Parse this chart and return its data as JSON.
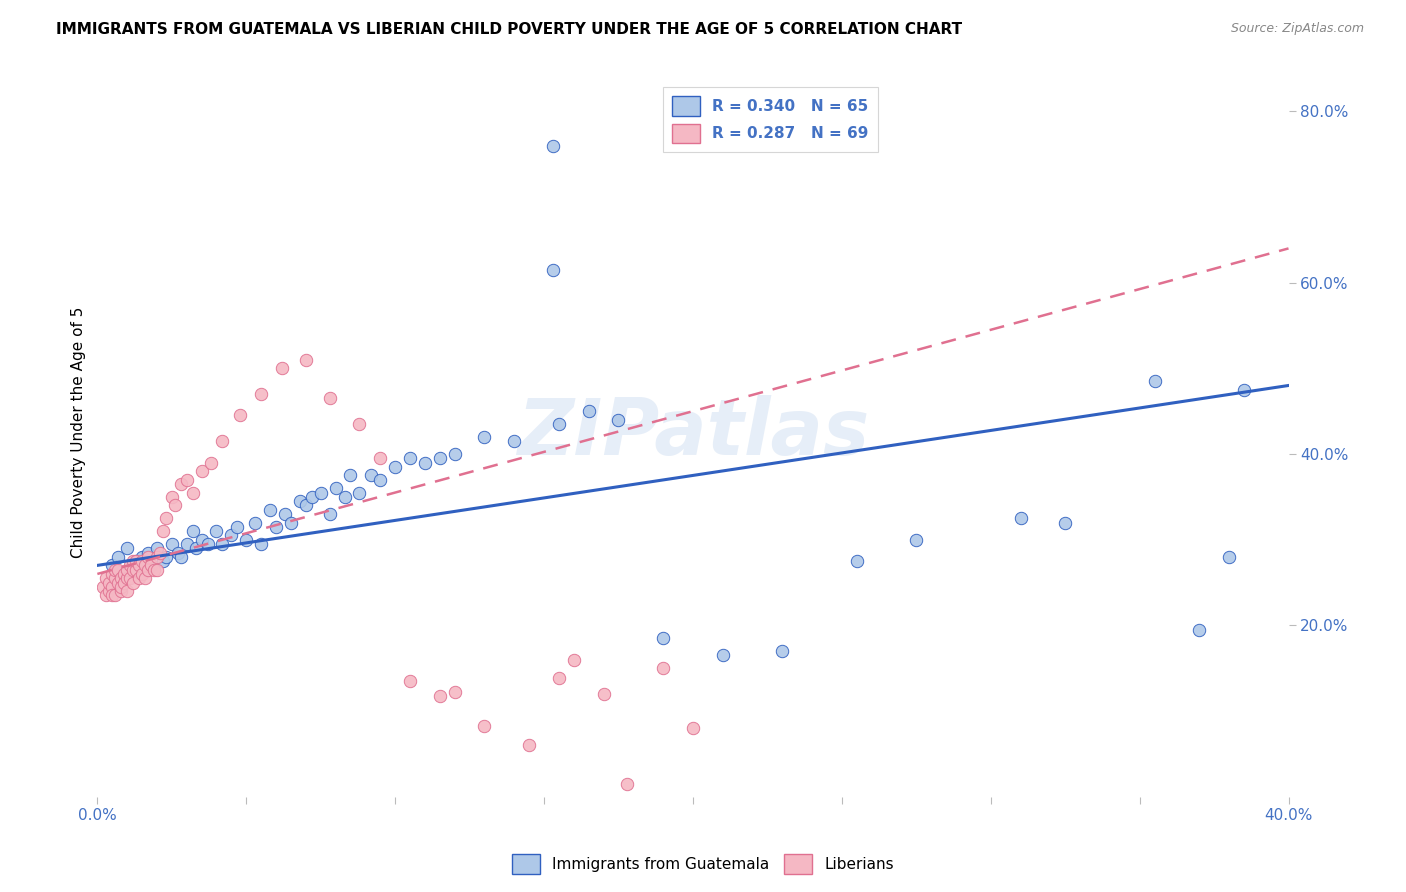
{
  "title": "IMMIGRANTS FROM GUATEMALA VS LIBERIAN CHILD POVERTY UNDER THE AGE OF 5 CORRELATION CHART",
  "source": "Source: ZipAtlas.com",
  "ylabel": "Child Poverty Under the Age of 5",
  "xlim": [
    0.0,
    0.4
  ],
  "ylim": [
    0.0,
    0.85
  ],
  "x_ticks": [
    0.0,
    0.05,
    0.1,
    0.15,
    0.2,
    0.25,
    0.3,
    0.35,
    0.4
  ],
  "x_tick_labels": [
    "0.0%",
    "",
    "",
    "",
    "",
    "",
    "",
    "",
    "40.0%"
  ],
  "y_ticks_right": [
    0.2,
    0.4,
    0.6,
    0.8
  ],
  "y_tick_labels_right": [
    "20.0%",
    "40.0%",
    "60.0%",
    "80.0%"
  ],
  "watermark": "ZIPatlas",
  "bg_color": "#ffffff",
  "blue_scatter_color": "#aec8e8",
  "pink_scatter_color": "#f5b8c4",
  "blue_line_color": "#3060c0",
  "pink_line_color": "#e07090",
  "grid_color": "#d8d8d8",
  "scatter_blue_x": [
    0.005,
    0.007,
    0.01,
    0.012,
    0.013,
    0.015,
    0.016,
    0.017,
    0.018,
    0.02,
    0.022,
    0.023,
    0.025,
    0.027,
    0.028,
    0.03,
    0.032,
    0.033,
    0.035,
    0.037,
    0.04,
    0.042,
    0.045,
    0.047,
    0.05,
    0.053,
    0.055,
    0.058,
    0.06,
    0.063,
    0.065,
    0.068,
    0.07,
    0.072,
    0.075,
    0.078,
    0.08,
    0.083,
    0.085,
    0.088,
    0.092,
    0.095,
    0.1,
    0.105,
    0.11,
    0.115,
    0.12,
    0.13,
    0.14,
    0.155,
    0.165,
    0.175,
    0.19,
    0.21,
    0.23,
    0.255,
    0.275,
    0.31,
    0.325,
    0.355,
    0.37,
    0.38,
    0.385,
    0.153,
    0.153
  ],
  "scatter_blue_y": [
    0.27,
    0.28,
    0.29,
    0.27,
    0.275,
    0.28,
    0.265,
    0.285,
    0.27,
    0.29,
    0.275,
    0.28,
    0.295,
    0.285,
    0.28,
    0.295,
    0.31,
    0.29,
    0.3,
    0.295,
    0.31,
    0.295,
    0.305,
    0.315,
    0.3,
    0.32,
    0.295,
    0.335,
    0.315,
    0.33,
    0.32,
    0.345,
    0.34,
    0.35,
    0.355,
    0.33,
    0.36,
    0.35,
    0.375,
    0.355,
    0.375,
    0.37,
    0.385,
    0.395,
    0.39,
    0.395,
    0.4,
    0.42,
    0.415,
    0.435,
    0.45,
    0.44,
    0.185,
    0.165,
    0.17,
    0.275,
    0.3,
    0.325,
    0.32,
    0.485,
    0.195,
    0.28,
    0.475,
    0.76,
    0.615
  ],
  "scatter_pink_x": [
    0.002,
    0.003,
    0.003,
    0.004,
    0.004,
    0.005,
    0.005,
    0.005,
    0.006,
    0.006,
    0.006,
    0.007,
    0.007,
    0.008,
    0.008,
    0.008,
    0.009,
    0.009,
    0.01,
    0.01,
    0.01,
    0.011,
    0.011,
    0.012,
    0.012,
    0.012,
    0.013,
    0.013,
    0.014,
    0.014,
    0.015,
    0.015,
    0.016,
    0.016,
    0.017,
    0.017,
    0.018,
    0.019,
    0.02,
    0.02,
    0.021,
    0.022,
    0.023,
    0.025,
    0.026,
    0.028,
    0.03,
    0.032,
    0.035,
    0.038,
    0.042,
    0.048,
    0.055,
    0.062,
    0.07,
    0.078,
    0.088,
    0.095,
    0.105,
    0.115,
    0.12,
    0.13,
    0.145,
    0.155,
    0.16,
    0.17,
    0.178,
    0.19,
    0.2
  ],
  "scatter_pink_y": [
    0.245,
    0.235,
    0.255,
    0.24,
    0.25,
    0.26,
    0.245,
    0.235,
    0.255,
    0.265,
    0.235,
    0.25,
    0.265,
    0.24,
    0.255,
    0.245,
    0.26,
    0.25,
    0.255,
    0.265,
    0.24,
    0.27,
    0.255,
    0.265,
    0.275,
    0.25,
    0.265,
    0.275,
    0.27,
    0.255,
    0.275,
    0.26,
    0.27,
    0.255,
    0.265,
    0.28,
    0.27,
    0.265,
    0.28,
    0.265,
    0.285,
    0.31,
    0.325,
    0.35,
    0.34,
    0.365,
    0.37,
    0.355,
    0.38,
    0.39,
    0.415,
    0.445,
    0.47,
    0.5,
    0.51,
    0.465,
    0.435,
    0.395,
    0.135,
    0.118,
    0.122,
    0.082,
    0.06,
    0.138,
    0.16,
    0.12,
    0.015,
    0.15,
    0.08
  ]
}
